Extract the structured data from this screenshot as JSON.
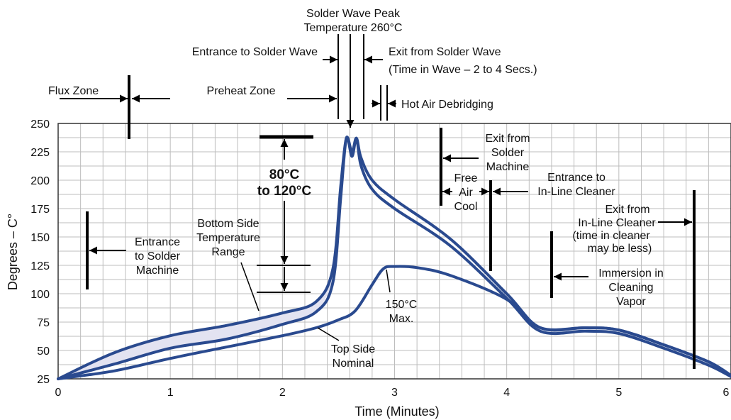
{
  "chart_data": {
    "type": "line",
    "title": "",
    "xlabel": "Time (Minutes)",
    "ylabel": "Degrees – C°",
    "xlim": [
      0,
      6
    ],
    "ylim": [
      25,
      250
    ],
    "x_ticks": [
      0,
      1,
      2,
      3,
      4,
      5,
      6
    ],
    "y_ticks": [
      25,
      50,
      75,
      100,
      125,
      150,
      175,
      200,
      225,
      250
    ],
    "grid": true,
    "colors": {
      "curve": "#2a4a8f",
      "band_fill": "#e3e3f1",
      "grid": "#bdbdbd",
      "marker": "#000000"
    },
    "series": [
      {
        "name": "",
        "role": "bottom-side-upper",
        "x": [
          0,
          0.5,
          1,
          1.5,
          2,
          2.3,
          2.45,
          2.52,
          2.57,
          2.62,
          2.66,
          2.7,
          2.8,
          3.0,
          3.5,
          4.0,
          4.3,
          4.7,
          5.0,
          5.4,
          5.8,
          6.0
        ],
        "y": [
          25,
          48,
          63,
          72,
          83,
          93,
          122,
          195,
          237,
          225,
          237,
          220,
          200,
          183,
          148,
          100,
          70,
          70,
          68,
          55,
          40,
          28
        ]
      },
      {
        "name": "",
        "role": "bottom-side-lower",
        "x": [
          0,
          0.5,
          1,
          1.5,
          2,
          2.3,
          2.45,
          2.52,
          2.57,
          2.62,
          2.66,
          2.7,
          2.8,
          3.0,
          3.5,
          4.0,
          4.3,
          4.7,
          5.0,
          5.4,
          5.8,
          6.0
        ],
        "y": [
          25,
          38,
          52,
          60,
          73,
          84,
          110,
          185,
          237,
          221,
          237,
          213,
          192,
          175,
          142,
          96,
          67,
          67,
          65,
          52,
          37,
          27
        ]
      },
      {
        "name": "",
        "role": "top-side-nominal",
        "x": [
          0,
          0.5,
          1,
          1.5,
          2,
          2.3,
          2.5,
          2.65,
          2.8,
          2.9,
          3.0,
          3.2,
          3.5,
          4.0,
          4.3,
          4.7,
          5.0,
          5.4,
          5.8,
          6.0
        ],
        "y": [
          25,
          32,
          43,
          53,
          63,
          70,
          77,
          85,
          108,
          122,
          124,
          123,
          116,
          95,
          70,
          70,
          68,
          55,
          40,
          28
        ]
      }
    ],
    "annotations": {
      "wave_peak_line1": "Solder Wave Peak",
      "wave_peak_line2": "Temperature 260°C",
      "entrance_wave": "Entrance to Solder Wave",
      "exit_wave": "Exit from Solder Wave",
      "time_in_wave": "(Time in Wave – 2 to 4 Secs.)",
      "flux_zone": "Flux Zone",
      "preheat_zone": "Preheat Zone",
      "hot_air": "Hot Air Debridging",
      "delta_line1": "80°C",
      "delta_line2": "to 120°C",
      "entrance_machine": [
        "Entrance",
        "to Solder",
        "Machine"
      ],
      "bottom_range": [
        "Bottom Side",
        "Temperature",
        "Range"
      ],
      "top_nominal": [
        "Top Side",
        "Nominal"
      ],
      "max150": [
        "150°C",
        "Max."
      ],
      "exit_machine": [
        "Exit from",
        "Solder",
        "Machine"
      ],
      "free_air": [
        "Free",
        "Air",
        "Cool"
      ],
      "entrance_cleaner": [
        "Entrance to",
        "In-Line Cleaner"
      ],
      "exit_cleaner": [
        "Exit from",
        "In-Line Cleaner",
        "(time in cleaner",
        "may be less)"
      ],
      "immersion": [
        "Immersion in",
        "Cleaning",
        "Vapor"
      ]
    }
  }
}
